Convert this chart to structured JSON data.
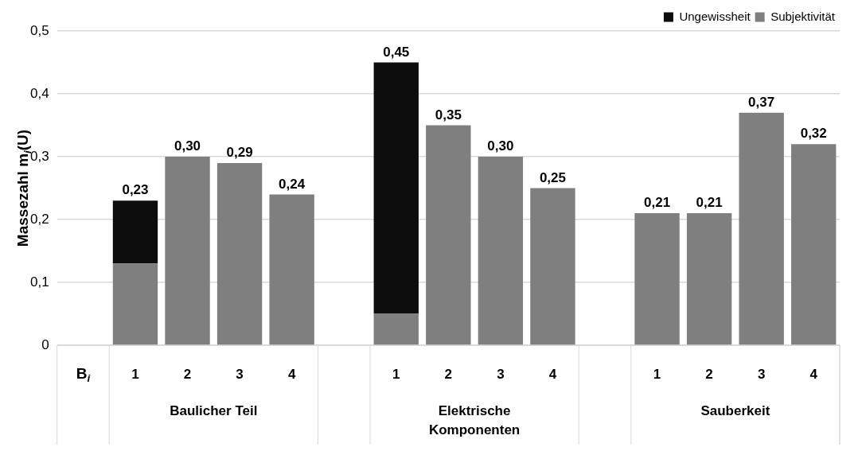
{
  "chart_data": {
    "type": "bar",
    "stacked": true,
    "ylabel": "Massezahl m$_{i}$(U)",
    "xlabel": "B$_{i}$",
    "categories": [
      null,
      "1",
      "2",
      "3",
      "4",
      null,
      "1",
      "2",
      "3",
      "4",
      null,
      "1",
      "2",
      "3",
      "4"
    ],
    "series": [
      {
        "name": "Subjektivität",
        "color": "#7f7f7f",
        "values": [
          null,
          0.13,
          0.3,
          0.29,
          0.24,
          null,
          0.05,
          0.35,
          0.3,
          0.25,
          null,
          0.21,
          0.21,
          0.37,
          0.32
        ]
      },
      {
        "name": "Ungewissheit",
        "color": "#0d0d0d",
        "values": [
          null,
          0.1,
          null,
          null,
          null,
          null,
          0.4,
          null,
          null,
          null,
          null,
          null,
          null,
          null,
          null
        ]
      }
    ],
    "totals": [
      null,
      "0,23",
      "0,30",
      "0,29",
      "0,24",
      null,
      "0,45",
      "0,35",
      "0,30",
      "0,25",
      null,
      "0,21",
      "0,21",
      "0,37",
      "0,32"
    ],
    "annotations": [
      "Baulicher Teil",
      "Elektrische Komponenten",
      "Sauberkeit"
    ],
    "ylim": [
      0,
      0.5
    ],
    "yticks": [
      0,
      {
        "value": 0.1,
        "label": "0,1"
      },
      {
        "value": 0.2,
        "label": "0,2"
      },
      {
        "value": 0.3,
        "label": "0,3"
      },
      {
        "value": 0.4,
        "label": "0,4"
      },
      {
        "value": 0.5,
        "label": "0,5"
      }
    ],
    "grid": "y",
    "legend": "top right"
  }
}
